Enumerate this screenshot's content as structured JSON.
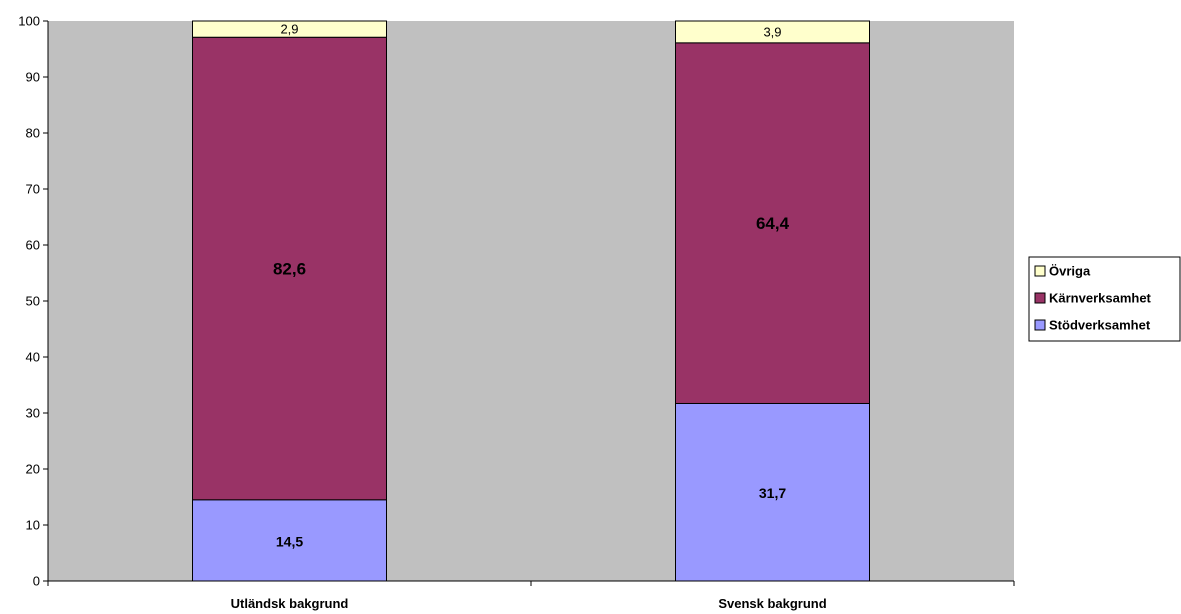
{
  "chart_data": {
    "type": "bar",
    "stacked": true,
    "categories": [
      "Utländsk bakgrund",
      "Svensk bakgrund"
    ],
    "series": [
      {
        "name": "Stödverksamhet",
        "values": [
          14.5,
          31.7
        ],
        "labels": [
          "14,5",
          "31,7"
        ],
        "color": "#9999ff"
      },
      {
        "name": "Kärnverksamhet",
        "values": [
          82.6,
          64.4
        ],
        "labels": [
          "82,6",
          "64,4"
        ],
        "color": "#993366"
      },
      {
        "name": "Övriga",
        "values": [
          2.9,
          3.9
        ],
        "labels": [
          "2,9",
          "3,9"
        ],
        "color": "#ffffcc"
      }
    ],
    "legend_order": [
      "Övriga",
      "Kärnverksamhet",
      "Stödverksamhet"
    ],
    "title": "",
    "xlabel": "",
    "ylabel": "",
    "ylim": [
      0,
      100
    ],
    "yticks": [
      0,
      10,
      20,
      30,
      40,
      50,
      60,
      70,
      80,
      90,
      100
    ],
    "plot_background": "#c0c0c0",
    "legend_position": "right",
    "grid": false
  }
}
